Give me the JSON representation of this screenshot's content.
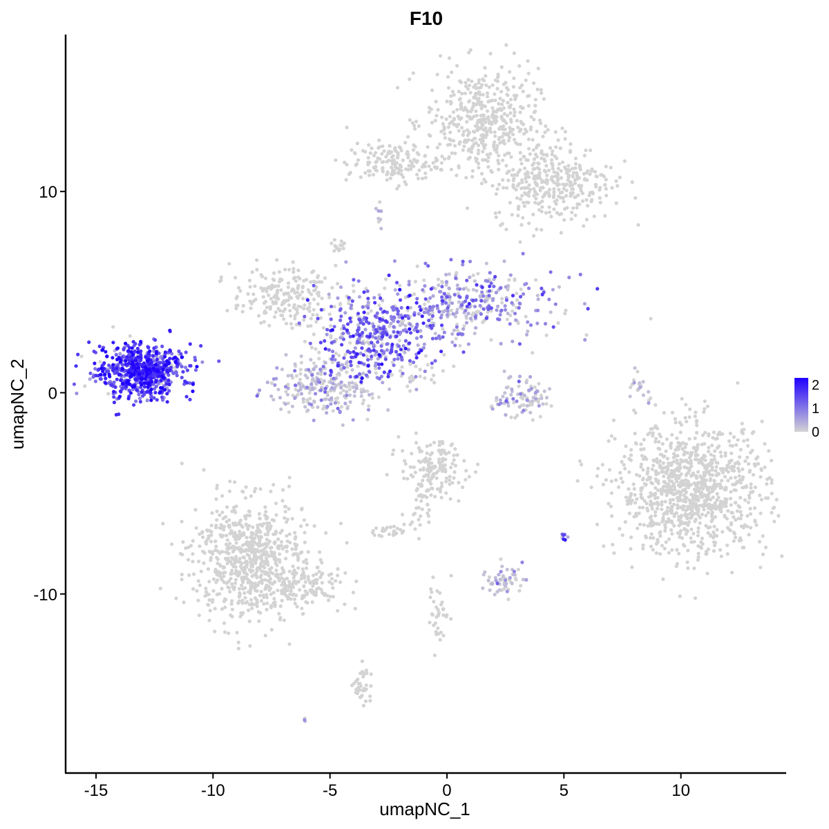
{
  "chart_data": {
    "type": "scatter",
    "title": "F10",
    "xlabel": "umapNC_1",
    "ylabel": "umapNC_2",
    "xlim": [
      -16.3,
      14.5
    ],
    "ylim": [
      -18.9,
      17.8
    ],
    "x_ticks": [
      -15,
      -10,
      -5,
      0,
      5,
      10
    ],
    "x_tick_labels": [
      "-15",
      "-10",
      "-5",
      "0",
      "5",
      "10"
    ],
    "y_ticks": [
      -10,
      0,
      10
    ],
    "y_tick_labels": [
      "-10",
      "0",
      "10"
    ],
    "grid": false,
    "legend": {
      "placement": "right",
      "type": "colorbar",
      "min": 0,
      "max": 2.3,
      "ticks": [
        "0",
        "1",
        "2"
      ],
      "low_color": "#d3d3d3",
      "high_color": "#1f00ff"
    },
    "point_color_low": "#d3d3d3",
    "point_color_high": "#1f00ff",
    "clusters": [
      {
        "id": "c_left_expr",
        "cx": -13.0,
        "cy": 1.1,
        "sx": 1.0,
        "sy": 0.65,
        "n": 700,
        "expr": 1.5
      },
      {
        "id": "c_top_main",
        "cx": 1.5,
        "cy": 13.5,
        "sx": 1.2,
        "sy": 1.3,
        "n": 450,
        "expr": 0
      },
      {
        "id": "c_top_right",
        "cx": 4.5,
        "cy": 10.5,
        "sx": 1.3,
        "sy": 1.0,
        "n": 350,
        "expr": 0
      },
      {
        "id": "c_top_left",
        "cx": -2.3,
        "cy": 11.4,
        "sx": 1.0,
        "sy": 0.5,
        "n": 150,
        "expr": 0
      },
      {
        "id": "c_mid_center",
        "cx": -3.0,
        "cy": 3.0,
        "sx": 1.3,
        "sy": 1.1,
        "n": 400,
        "expr": 1.1
      },
      {
        "id": "c_mid_right",
        "cx": 1.0,
        "cy": 4.5,
        "sx": 1.8,
        "sy": 0.9,
        "n": 350,
        "expr": 0.7
      },
      {
        "id": "c_mid_left",
        "cx": -7.0,
        "cy": 4.8,
        "sx": 1.1,
        "sy": 0.7,
        "n": 200,
        "expr": 0
      },
      {
        "id": "c_mid_bottom",
        "cx": -5.3,
        "cy": 0.4,
        "sx": 1.2,
        "sy": 0.8,
        "n": 260,
        "expr": 0.2
      },
      {
        "id": "c_small_mid",
        "cx": 3.2,
        "cy": -0.3,
        "sx": 0.6,
        "sy": 0.45,
        "n": 90,
        "expr": 0.3
      },
      {
        "id": "c_small_line",
        "cx": 8.2,
        "cy": 0.2,
        "sx": 0.2,
        "sy": 0.6,
        "n": 20,
        "expr": 0.3
      },
      {
        "id": "c_right",
        "cx": 10.5,
        "cy": -4.8,
        "sx": 1.6,
        "sy": 1.6,
        "n": 1000,
        "expr": 0
      },
      {
        "id": "c_bottom_left",
        "cx": -8.5,
        "cy": -8.3,
        "sx": 1.2,
        "sy": 1.5,
        "n": 700,
        "expr": 0
      },
      {
        "id": "c_bl_tail",
        "cx": -6.0,
        "cy": -9.6,
        "sx": 0.9,
        "sy": 0.5,
        "n": 120,
        "expr": 0
      },
      {
        "id": "c_center_low",
        "cx": -0.6,
        "cy": -3.8,
        "sx": 0.7,
        "sy": 0.7,
        "n": 150,
        "expr": 0
      },
      {
        "id": "c_bc_small",
        "cx": 2.4,
        "cy": -9.3,
        "sx": 0.4,
        "sy": 0.4,
        "n": 60,
        "expr": 0.1
      },
      {
        "id": "c_left_small",
        "cx": -2.5,
        "cy": -6.9,
        "sx": 0.3,
        "sy": 0.15,
        "n": 25,
        "expr": 0
      },
      {
        "id": "c_bottom_strip",
        "cx": -3.6,
        "cy": -14.5,
        "sx": 0.2,
        "sy": 0.6,
        "n": 40,
        "expr": 0
      },
      {
        "id": "c_down_stem",
        "cx": -0.3,
        "cy": -11.0,
        "sx": 0.25,
        "sy": 0.8,
        "n": 35,
        "expr": 0
      },
      {
        "id": "c_mid_stem",
        "cx": -1.2,
        "cy": -5.5,
        "sx": 0.3,
        "sy": 0.8,
        "n": 30,
        "expr": 0
      },
      {
        "id": "c_top_stub",
        "cx": -4.6,
        "cy": 7.3,
        "sx": 0.15,
        "sy": 0.2,
        "n": 15,
        "expr": 0
      },
      {
        "id": "c_tiny_5",
        "cx": 5.0,
        "cy": -7.2,
        "sx": 0.1,
        "sy": 0.1,
        "n": 8,
        "expr": 1.3
      },
      {
        "id": "c_stripe_a",
        "cx": -1.2,
        "cy": 0.9,
        "sx": 0.6,
        "sy": 0.3,
        "n": 20,
        "expr": 0
      },
      {
        "id": "c_misc_a",
        "cx": -2.9,
        "cy": 8.6,
        "sx": 0.1,
        "sy": 0.3,
        "n": 8,
        "expr": 0.4
      },
      {
        "id": "c_bottom_pt",
        "cx": -6.1,
        "cy": -16.2,
        "sx": 0.05,
        "sy": 0.05,
        "n": 3,
        "expr": 0.4
      }
    ]
  }
}
